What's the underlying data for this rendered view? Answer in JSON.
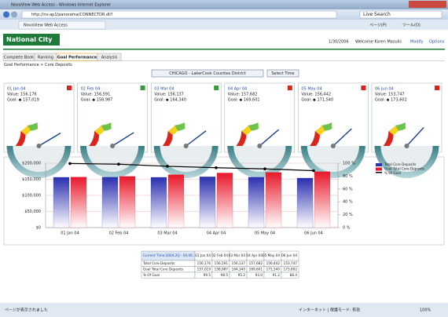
{
  "browser": {
    "title": "NovaView Web Access - Windows Internet Explorer",
    "address": "http://nv-ap1/panorama/CONNECTOR.dll?",
    "search": "Live Search",
    "tab": "NovaView Web Access",
    "page_menu": "ページ(P)",
    "tools_menu": "ツール(O)",
    "status": "ページが表示されました",
    "zone": "インターネット | 保護モード: 有効",
    "zoom": "100%"
  },
  "header": {
    "logo": "National City",
    "date": "1/30/2006",
    "welcome": "Welcome  Karen Masulis",
    "links": [
      "Modify",
      "Options"
    ]
  },
  "tabs": [
    "Complete Book",
    "Ranking",
    "Goal Performance",
    "Analysis"
  ],
  "breadcrumb": "Goal Performance > Core Deposits",
  "district": "CHICAGO - LakerCook Counties District",
  "select_time": "Select Time",
  "gauges": [
    {
      "date": "01 Jan 04",
      "value": "Value: 156,176",
      "goal": "Goal: ◆ 157,019"
    },
    {
      "date": "02 Feb 04",
      "value": "Value: 156,591",
      "goal": "Goal: ◆ 158,987"
    },
    {
      "date": "03 Mar 04",
      "value": "Value: 156,137",
      "goal": "Goal: ◆ 164,340"
    },
    {
      "date": "04 Apr 04",
      "value": "Value: 157,682",
      "goal": "Goal: ◆ 169,601"
    },
    {
      "date": "05 May 04",
      "value": "Value: 156,442",
      "goal": "Goal: ◆ 171,540"
    },
    {
      "date": "06 Jun 04",
      "value": "Value: 153,747",
      "goal": "Goal: ◆ 173,602"
    }
  ],
  "chart_data": {
    "type": "bar",
    "categories": [
      "01 Jan 04",
      "02 Feb 04",
      "03 Mar 04",
      "04 Apr 04",
      "05 May 04",
      "06 Jun 04"
    ],
    "series": [
      {
        "name": "Total Core Deposits",
        "color": "#2b2fb0",
        "values": [
          156176,
          156591,
          156137,
          157682,
          156442,
          153747
        ]
      },
      {
        "name": "Goal Total Core Deposits",
        "color": "#e8182a",
        "values": [
          157019,
          158987,
          164340,
          169601,
          171540,
          173602
        ]
      },
      {
        "name": "% Of Goal",
        "color": "#000000",
        "axis": "y2",
        "type": "line",
        "values": [
          99.5,
          98.5,
          95.2,
          93.0,
          91.2,
          88.4
        ]
      }
    ],
    "ylim": [
      0,
      200000
    ],
    "yticks": [
      {
        "value": 0,
        "label": "$0"
      },
      {
        "value": 50000,
        "label": "$50,000"
      },
      {
        "value": 100000,
        "label": "$100,000"
      },
      {
        "value": 150000,
        "label": "$150,000"
      },
      {
        "value": 200000,
        "label": "$200,000"
      }
    ],
    "y2lim": [
      0,
      100
    ],
    "y2ticks": [
      {
        "value": 0,
        "label": "0 %"
      },
      {
        "value": 20,
        "label": "20 %"
      },
      {
        "value": 40,
        "label": "40 %"
      },
      {
        "value": 60,
        "label": "60 %"
      },
      {
        "value": 80,
        "label": "80 %"
      },
      {
        "value": 100,
        "label": "100 %"
      }
    ],
    "grid": true,
    "legend": "top-right"
  },
  "table": {
    "header": [
      "Current Time:2004.2Q - 04.06...",
      "01 Jan 04",
      "02 Feb 04",
      "03 Mar 04",
      "04 Apr 04",
      "05 May 04",
      "06 Jun 04"
    ],
    "rows": [
      [
        "Total Core Deposits",
        "156,176",
        "156,591",
        "156,137",
        "157,682",
        "156,442",
        "153,747"
      ],
      [
        "Goal Total Core Deposits",
        "157,019",
        "158,987",
        "164,340",
        "169,601",
        "171,540",
        "173,602"
      ],
      [
        "% Of Goal",
        "99.5",
        "98.5",
        "95.2",
        "93.0",
        "91.2",
        "88.4"
      ]
    ]
  }
}
